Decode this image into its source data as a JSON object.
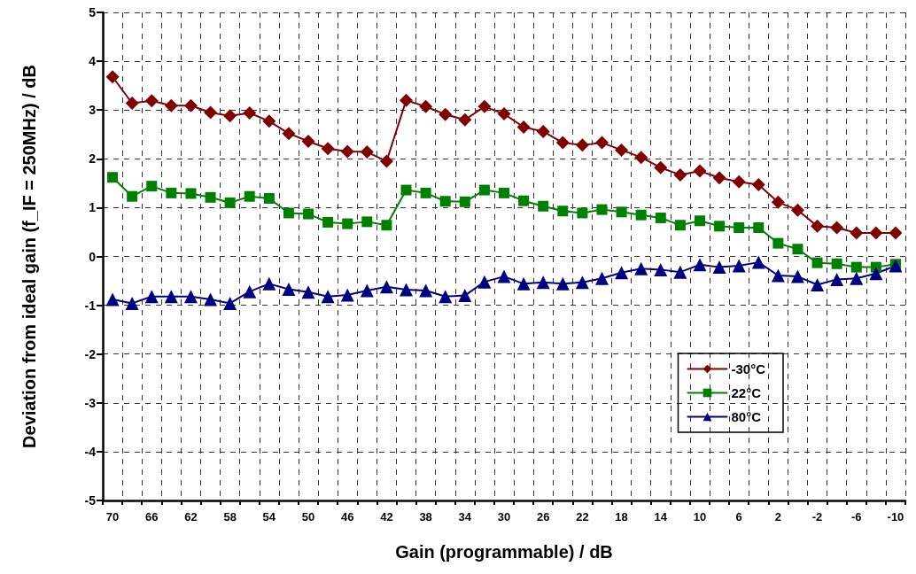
{
  "chart_data": {
    "type": "line",
    "xlabel": "Gain (programmable) / dB",
    "ylabel": "Deviation from ideal gain (f_IF = 250MHz) / dB",
    "categories": [
      "70",
      null,
      "66",
      null,
      "62",
      null,
      "58",
      null,
      "54",
      null,
      "50",
      null,
      "46",
      null,
      "42",
      null,
      "38",
      null,
      "34",
      null,
      "30",
      null,
      "26",
      null,
      "22",
      null,
      "18",
      null,
      "14",
      null,
      "10",
      null,
      "6",
      null,
      "2",
      null,
      "-2",
      null,
      "-6",
      null,
      "-10"
    ],
    "series": [
      {
        "name": "-30°C",
        "color": "#800000",
        "marker": "diamond",
        "values": [
          3.68,
          3.14,
          3.19,
          3.09,
          3.09,
          2.95,
          2.88,
          2.94,
          2.77,
          2.52,
          2.36,
          2.21,
          2.15,
          2.14,
          1.95,
          3.2,
          3.07,
          2.91,
          2.8,
          3.07,
          2.92,
          2.65,
          2.56,
          2.33,
          2.28,
          2.33,
          2.18,
          2.03,
          1.82,
          1.67,
          1.75,
          1.61,
          1.53,
          1.47,
          1.11,
          0.95,
          0.62,
          0.59,
          0.48,
          0.48,
          0.48
        ]
      },
      {
        "name": "22°C",
        "color": "#008000",
        "marker": "square",
        "values": [
          1.62,
          1.23,
          1.44,
          1.3,
          1.29,
          1.21,
          1.1,
          1.23,
          1.19,
          0.89,
          0.87,
          0.7,
          0.67,
          0.71,
          0.64,
          1.36,
          1.3,
          1.13,
          1.12,
          1.36,
          1.3,
          1.14,
          1.03,
          0.93,
          0.89,
          0.96,
          0.91,
          0.85,
          0.79,
          0.64,
          0.73,
          0.62,
          0.59,
          0.59,
          0.27,
          0.15,
          -0.13,
          -0.15,
          -0.22,
          -0.22,
          -0.16
        ]
      },
      {
        "name": "80°C",
        "color": "#000080",
        "marker": "triangle",
        "values": [
          -0.88,
          -0.96,
          -0.82,
          -0.82,
          -0.82,
          -0.88,
          -0.96,
          -0.72,
          -0.56,
          -0.67,
          -0.73,
          -0.82,
          -0.79,
          -0.7,
          -0.62,
          -0.68,
          -0.7,
          -0.82,
          -0.8,
          -0.52,
          -0.41,
          -0.56,
          -0.53,
          -0.56,
          -0.53,
          -0.45,
          -0.33,
          -0.25,
          -0.27,
          -0.32,
          -0.17,
          -0.22,
          -0.19,
          -0.12,
          -0.39,
          -0.41,
          -0.58,
          -0.47,
          -0.45,
          -0.35,
          -0.19
        ]
      }
    ],
    "ylim": [
      -5,
      5
    ],
    "yticks": [
      -5,
      -4,
      -3,
      -2,
      -1,
      0,
      1,
      2,
      3,
      4,
      5
    ],
    "grid": true,
    "legend": "bottom right",
    "line_style": "solid"
  }
}
